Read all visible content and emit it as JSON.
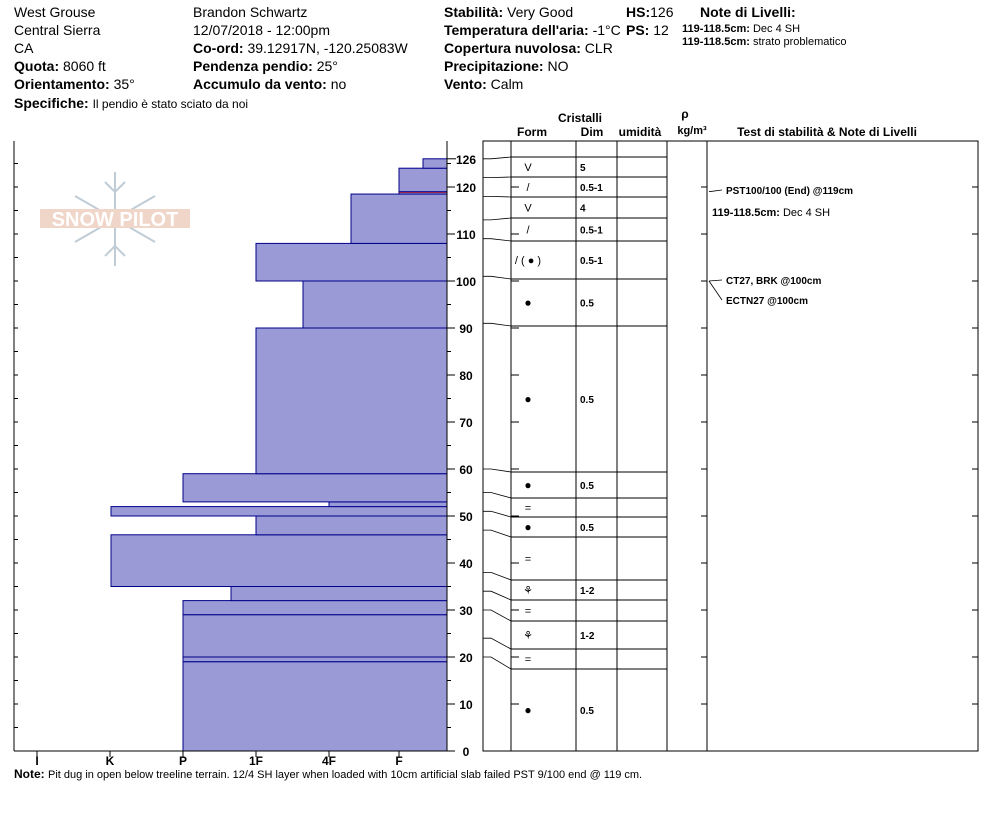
{
  "header": {
    "location": "West Grouse",
    "range": "Central Sierra",
    "state": "CA",
    "observer": "Brandon Schwartz",
    "datetime": "12/07/2018 - 12:00pm",
    "quota_label": "Quota:",
    "quota_value": "8060 ft",
    "orient_label": "Orientamento:",
    "orient_value": "35°",
    "coord_label": "Co-ord:",
    "coord_value": "39.12917N, -120.25083W",
    "pendenza_label": "Pendenza pendio:",
    "pendenza_value": "25°",
    "accumulo_label": "Accumulo da vento:",
    "accumulo_value": "no",
    "specifiche_label": "Specifiche:",
    "specifiche_value": "Il pendio è stato sciato da noi",
    "stabilita_label": "Stabilità:",
    "stabilita_value": "Very Good",
    "temp_label": "Temperatura dell'aria:",
    "temp_value": "-1°C",
    "copertura_label": "Copertura nuvolosa:",
    "copertura_value": "CLR",
    "precip_label": "Precipitazione:",
    "precip_value": "NO",
    "vento_label": "Vento:",
    "vento_value": "Calm",
    "hs_label": "HS:",
    "hs_value": "126",
    "ps_label": "PS:",
    "ps_value": "12",
    "note_title": "Note di Livelli:",
    "note_lines": [
      {
        "range": "119-118.5cm:",
        "text": "Dec 4 SH"
      },
      {
        "range": "119-118.5cm:",
        "text": "strato problematico"
      }
    ]
  },
  "footer": {
    "label": "Note:",
    "text": "Pit dug in open below treeline terrain. 12/4 SH layer when loaded with 10cm artificial slab failed PST 9/100 end @ 119 cm."
  },
  "watermark": "SNOW PILOT",
  "columns": {
    "cristalli": "Cristalli",
    "form": "Form",
    "dim": "Dim",
    "umidita": "umidità",
    "rho": "ρ",
    "density_unit": "kg/m³",
    "tests_title": "Test di stabilità & Note di Livelli"
  },
  "chart_data": {
    "type": "bar",
    "description_orientation": "horizontal bars; hardness profile vs snow depth",
    "hardness_scale": [
      "I",
      "K",
      "P",
      "1F",
      "4F",
      "F"
    ],
    "y_axis_ticks": [
      0,
      10,
      20,
      30,
      40,
      50,
      60,
      70,
      80,
      90,
      100,
      110,
      120,
      126
    ],
    "ylim": [
      0,
      126
    ],
    "hardness_layers": [
      {
        "bottom": 0,
        "top": 19,
        "hardness": "P"
      },
      {
        "bottom": 19,
        "top": 20,
        "hardness": "P"
      },
      {
        "bottom": 20,
        "top": 29,
        "hardness": "P"
      },
      {
        "bottom": 29,
        "top": 32,
        "hardness": "P"
      },
      {
        "bottom": 32,
        "top": 35,
        "hardness": "P+"
      },
      {
        "bottom": 35,
        "top": 46,
        "hardness": "K+"
      },
      {
        "bottom": 46,
        "top": 50,
        "hardness": "1F"
      },
      {
        "bottom": 50,
        "top": 52,
        "hardness": "I+"
      },
      {
        "bottom": 52,
        "top": 53,
        "hardness": "4F"
      },
      {
        "bottom": 53,
        "top": 59,
        "hardness": "P"
      },
      {
        "bottom": 59,
        "top": 90,
        "hardness": "1F"
      },
      {
        "bottom": 90,
        "top": 100,
        "hardness": "1F+"
      },
      {
        "bottom": 100,
        "top": 108,
        "hardness": "1F"
      },
      {
        "bottom": 108,
        "top": 118.5,
        "hardness": "4F+"
      },
      {
        "bottom": 118.5,
        "top": 119,
        "hardness": "F",
        "problem": true
      },
      {
        "bottom": 119,
        "top": 124,
        "hardness": "F"
      },
      {
        "bottom": 124,
        "top": 126,
        "hardness": "F+"
      }
    ],
    "crystal_layers": [
      {
        "top": 126,
        "bottom": 122,
        "form": "V",
        "dim": "5"
      },
      {
        "top": 122,
        "bottom": 118,
        "form": "/",
        "dim": "0.5-1"
      },
      {
        "top": 118,
        "bottom": 113,
        "form": "V",
        "dim": "4"
      },
      {
        "top": 113,
        "bottom": 109,
        "form": "/",
        "dim": "0.5-1"
      },
      {
        "top": 109,
        "bottom": 101,
        "form": "/ ( ● )",
        "dim": "0.5-1"
      },
      {
        "top": 101,
        "bottom": 91,
        "form": "●",
        "dim": "0.5"
      },
      {
        "top": 91,
        "bottom": 60,
        "form": "●",
        "dim": "0.5"
      },
      {
        "top": 60,
        "bottom": 55,
        "form": "●",
        "dim": "0.5"
      },
      {
        "top": 55,
        "bottom": 51,
        "form": "=",
        "dim": ""
      },
      {
        "top": 51,
        "bottom": 47,
        "form": "●",
        "dim": "0.5"
      },
      {
        "top": 47,
        "bottom": 38,
        "form": "=",
        "dim": ""
      },
      {
        "top": 38,
        "bottom": 34,
        "form": "⚘",
        "dim": "1-2"
      },
      {
        "top": 34,
        "bottom": 30,
        "form": "=",
        "dim": ""
      },
      {
        "top": 30,
        "bottom": 24,
        "form": "⚘",
        "dim": "1-2"
      },
      {
        "top": 24,
        "bottom": 20,
        "form": "=",
        "dim": ""
      },
      {
        "top": 20,
        "bottom": 0,
        "form": "●",
        "dim": "0.5"
      }
    ],
    "stability_tests": [
      {
        "depth": 119,
        "text": "PST100/100 (End) @119cm"
      },
      {
        "depth": 100,
        "text": "CT27, BRK @100cm"
      },
      {
        "depth": 100,
        "text": "ECTN27 @100cm"
      }
    ],
    "layer_notes": [
      {
        "depth": 119,
        "range": "119-118.5cm:",
        "text": "Dec 4 SH"
      }
    ],
    "colors": {
      "bar_fill": "#9a9ad6",
      "bar_stroke": "#00008b",
      "problem_layer": "#cc0000"
    }
  }
}
